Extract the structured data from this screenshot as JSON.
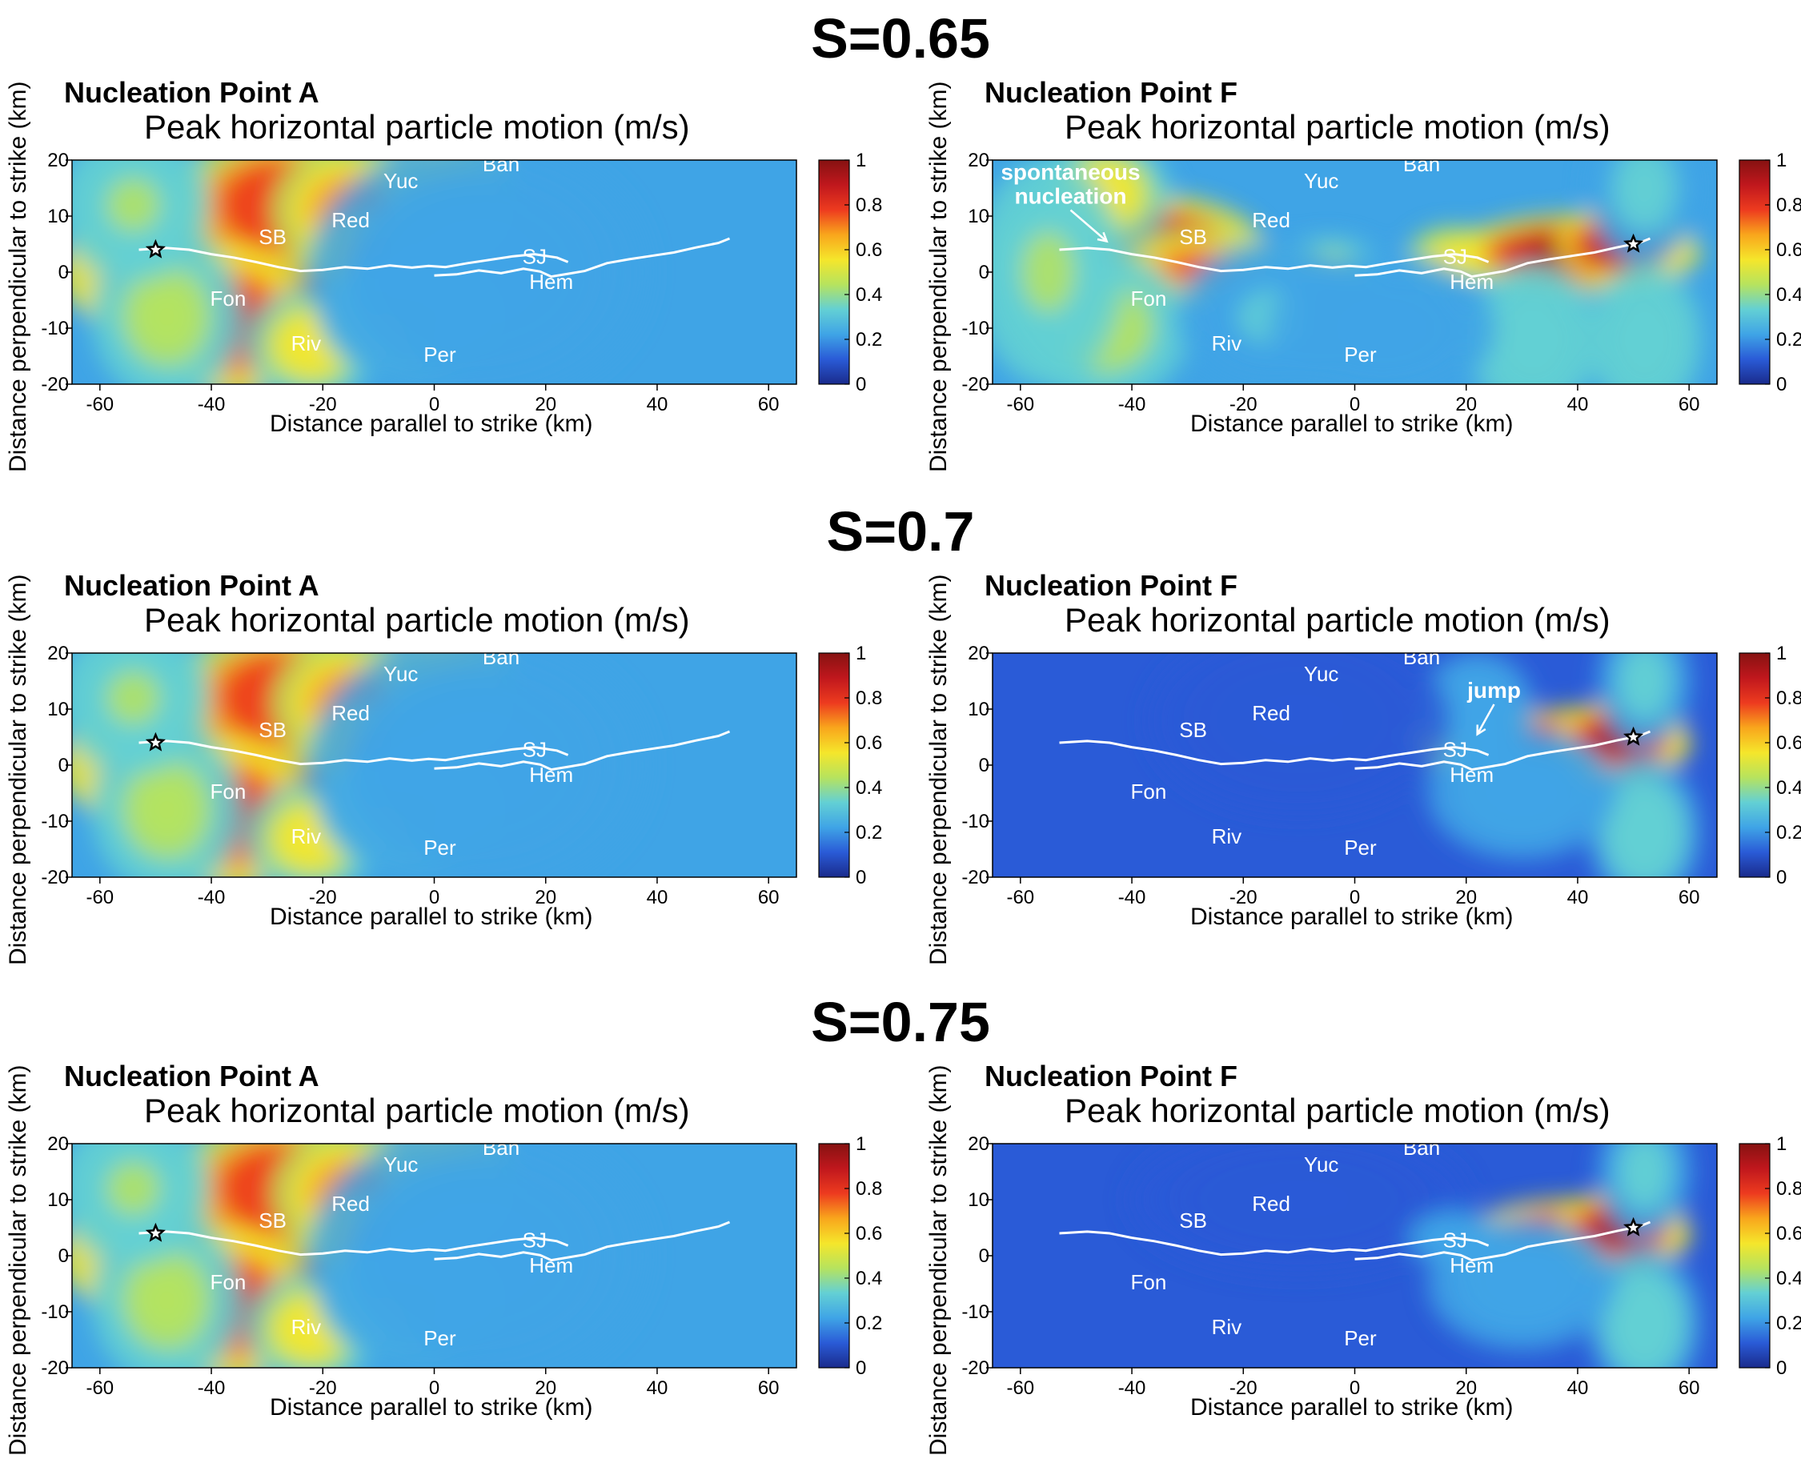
{
  "figure": {
    "s_labels": [
      "S=0.65",
      "S=0.7",
      "S=0.75"
    ]
  },
  "colors": {
    "colormap": [
      "#1a2b8c",
      "#2a5bd7",
      "#3fa4e6",
      "#63d0d4",
      "#b6e35e",
      "#f5e62b",
      "#f9a61c",
      "#ed3b1f",
      "#c0171d",
      "#861211"
    ],
    "fault": "#ffffff",
    "label_text": "#ffffff"
  },
  "chart_data": [
    {
      "type": "heatmap",
      "panel": "S=0.65 / A",
      "nucleation": "Nucleation Point A",
      "title": "Peak horizontal particle motion (m/s)",
      "xlabel": "Distance parallel to strike (km)",
      "ylabel": "Distance perpendicular to strike (km)",
      "xlim": [
        -65,
        65
      ],
      "ylim": [
        -20,
        20
      ],
      "xticks": [
        "-60",
        "-40",
        "-20",
        "0",
        "20",
        "40",
        "60"
      ],
      "yticks": [
        "20",
        "10",
        "0",
        "-10",
        "-20"
      ],
      "colorbar": {
        "range": [
          0,
          1
        ],
        "ticks": [
          "1",
          "0.8",
          "0.6",
          "0.4",
          "0.2",
          "0"
        ]
      },
      "hypocenter": [
        -50,
        4
      ],
      "annotations": [
        {
          "text": "Ban",
          "x": 12,
          "y": 18
        },
        {
          "text": "Yuc",
          "x": -6,
          "y": 15
        },
        {
          "text": "Red",
          "x": -15,
          "y": 8
        },
        {
          "text": "SB",
          "x": -29,
          "y": 5
        },
        {
          "text": "SJ",
          "x": 18,
          "y": 1.5
        },
        {
          "text": "Hem",
          "x": 21,
          "y": -3
        },
        {
          "text": "Fon",
          "x": -37,
          "y": -6
        },
        {
          "text": "Riv",
          "x": -23,
          "y": -14
        },
        {
          "text": "Per",
          "x": 1,
          "y": -16
        }
      ],
      "callouts": []
    },
    {
      "type": "heatmap",
      "panel": "S=0.65 / F",
      "nucleation": "Nucleation Point F",
      "title": "Peak horizontal particle motion (m/s)",
      "xlabel": "Distance parallel to strike (km)",
      "ylabel": "Distance perpendicular to strike (km)",
      "xlim": [
        -65,
        65
      ],
      "ylim": [
        -20,
        20
      ],
      "xticks": [
        "-60",
        "-40",
        "-20",
        "0",
        "20",
        "40",
        "60"
      ],
      "yticks": [
        "20",
        "10",
        "0",
        "-10",
        "-20"
      ],
      "colorbar": {
        "range": [
          0,
          1
        ],
        "ticks": [
          "1",
          "0.8",
          "0.6",
          "0.4",
          "0.2",
          "0"
        ]
      },
      "hypocenter": [
        50,
        5
      ],
      "annotations": [
        {
          "text": "Ban",
          "x": 12,
          "y": 18
        },
        {
          "text": "Yuc",
          "x": -6,
          "y": 15
        },
        {
          "text": "Red",
          "x": -15,
          "y": 8
        },
        {
          "text": "SB",
          "x": -29,
          "y": 5
        },
        {
          "text": "SJ",
          "x": 18,
          "y": 1.5
        },
        {
          "text": "Hem",
          "x": 21,
          "y": -3
        },
        {
          "text": "Fon",
          "x": -37,
          "y": -6
        },
        {
          "text": "Riv",
          "x": -23,
          "y": -14
        },
        {
          "text": "Per",
          "x": 1,
          "y": -16
        }
      ],
      "callouts": [
        {
          "lines": [
            "spontaneous",
            "nucleation"
          ],
          "x": -51,
          "y": 16.5,
          "tx": -44.5,
          "ty": 5.5
        }
      ]
    },
    {
      "type": "heatmap",
      "panel": "S=0.7 / A",
      "nucleation": "Nucleation Point A",
      "title": "Peak horizontal particle motion (m/s)",
      "xlabel": "Distance parallel to strike (km)",
      "ylabel": "Distance perpendicular to strike (km)",
      "xlim": [
        -65,
        65
      ],
      "ylim": [
        -20,
        20
      ],
      "xticks": [
        "-60",
        "-40",
        "-20",
        "0",
        "20",
        "40",
        "60"
      ],
      "yticks": [
        "20",
        "10",
        "0",
        "-10",
        "-20"
      ],
      "colorbar": {
        "range": [
          0,
          1
        ],
        "ticks": [
          "1",
          "0.8",
          "0.6",
          "0.4",
          "0.2",
          "0"
        ]
      },
      "hypocenter": [
        -50,
        4
      ],
      "annotations": [
        {
          "text": "Ban",
          "x": 12,
          "y": 18
        },
        {
          "text": "Yuc",
          "x": -6,
          "y": 15
        },
        {
          "text": "Red",
          "x": -15,
          "y": 8
        },
        {
          "text": "SB",
          "x": -29,
          "y": 5
        },
        {
          "text": "SJ",
          "x": 18,
          "y": 1.5
        },
        {
          "text": "Hem",
          "x": 21,
          "y": -3
        },
        {
          "text": "Fon",
          "x": -37,
          "y": -6
        },
        {
          "text": "Riv",
          "x": -23,
          "y": -14
        },
        {
          "text": "Per",
          "x": 1,
          "y": -16
        }
      ],
      "callouts": []
    },
    {
      "type": "heatmap",
      "panel": "S=0.7 / F",
      "nucleation": "Nucleation Point F",
      "title": "Peak horizontal particle motion (m/s)",
      "xlabel": "Distance parallel to strike (km)",
      "ylabel": "Distance perpendicular to strike (km)",
      "xlim": [
        -65,
        65
      ],
      "ylim": [
        -20,
        20
      ],
      "xticks": [
        "-60",
        "-40",
        "-20",
        "0",
        "20",
        "40",
        "60"
      ],
      "yticks": [
        "20",
        "10",
        "0",
        "-10",
        "-20"
      ],
      "colorbar": {
        "range": [
          0,
          1
        ],
        "ticks": [
          "1",
          "0.8",
          "0.6",
          "0.4",
          "0.2",
          "0"
        ]
      },
      "hypocenter": [
        50,
        5
      ],
      "annotations": [
        {
          "text": "Ban",
          "x": 12,
          "y": 18
        },
        {
          "text": "Yuc",
          "x": -6,
          "y": 15
        },
        {
          "text": "Red",
          "x": -15,
          "y": 8
        },
        {
          "text": "SB",
          "x": -29,
          "y": 5
        },
        {
          "text": "SJ",
          "x": 18,
          "y": 1.5
        },
        {
          "text": "Hem",
          "x": 21,
          "y": -3
        },
        {
          "text": "Fon",
          "x": -37,
          "y": -6
        },
        {
          "text": "Riv",
          "x": -23,
          "y": -14
        },
        {
          "text": "Per",
          "x": 1,
          "y": -16
        }
      ],
      "callouts": [
        {
          "lines": [
            "jump"
          ],
          "x": 25,
          "y": 12,
          "tx": 22,
          "ty": 5.5
        }
      ]
    },
    {
      "type": "heatmap",
      "panel": "S=0.75 / A",
      "nucleation": "Nucleation Point A",
      "title": "Peak horizontal particle motion (m/s)",
      "xlabel": "Distance parallel to strike (km)",
      "ylabel": "Distance perpendicular to strike (km)",
      "xlim": [
        -65,
        65
      ],
      "ylim": [
        -20,
        20
      ],
      "xticks": [
        "-60",
        "-40",
        "-20",
        "0",
        "20",
        "40",
        "60"
      ],
      "yticks": [
        "20",
        "10",
        "0",
        "-10",
        "-20"
      ],
      "colorbar": {
        "range": [
          0,
          1
        ],
        "ticks": [
          "1",
          "0.8",
          "0.6",
          "0.4",
          "0.2",
          "0"
        ]
      },
      "hypocenter": [
        -50,
        4
      ],
      "annotations": [
        {
          "text": "Ban",
          "x": 12,
          "y": 18
        },
        {
          "text": "Yuc",
          "x": -6,
          "y": 15
        },
        {
          "text": "Red",
          "x": -15,
          "y": 8
        },
        {
          "text": "SB",
          "x": -29,
          "y": 5
        },
        {
          "text": "SJ",
          "x": 18,
          "y": 1.5
        },
        {
          "text": "Hem",
          "x": 21,
          "y": -3
        },
        {
          "text": "Fon",
          "x": -37,
          "y": -6
        },
        {
          "text": "Riv",
          "x": -23,
          "y": -14
        },
        {
          "text": "Per",
          "x": 1,
          "y": -16
        }
      ],
      "callouts": []
    },
    {
      "type": "heatmap",
      "panel": "S=0.75 / F",
      "nucleation": "Nucleation Point F",
      "title": "Peak horizontal particle motion (m/s)",
      "xlabel": "Distance parallel to strike (km)",
      "ylabel": "Distance perpendicular to strike (km)",
      "xlim": [
        -65,
        65
      ],
      "ylim": [
        -20,
        20
      ],
      "xticks": [
        "-60",
        "-40",
        "-20",
        "0",
        "20",
        "40",
        "60"
      ],
      "yticks": [
        "20",
        "10",
        "0",
        "-10",
        "-20"
      ],
      "colorbar": {
        "range": [
          0,
          1
        ],
        "ticks": [
          "1",
          "0.8",
          "0.6",
          "0.4",
          "0.2",
          "0"
        ]
      },
      "hypocenter": [
        50,
        5
      ],
      "annotations": [
        {
          "text": "Ban",
          "x": 12,
          "y": 18
        },
        {
          "text": "Yuc",
          "x": -6,
          "y": 15
        },
        {
          "text": "Red",
          "x": -15,
          "y": 8
        },
        {
          "text": "SB",
          "x": -29,
          "y": 5
        },
        {
          "text": "SJ",
          "x": 18,
          "y": 1.5
        },
        {
          "text": "Hem",
          "x": 21,
          "y": -3
        },
        {
          "text": "Fon",
          "x": -37,
          "y": -6
        },
        {
          "text": "Riv",
          "x": -23,
          "y": -14
        },
        {
          "text": "Per",
          "x": 1,
          "y": -16
        }
      ],
      "callouts": []
    }
  ]
}
